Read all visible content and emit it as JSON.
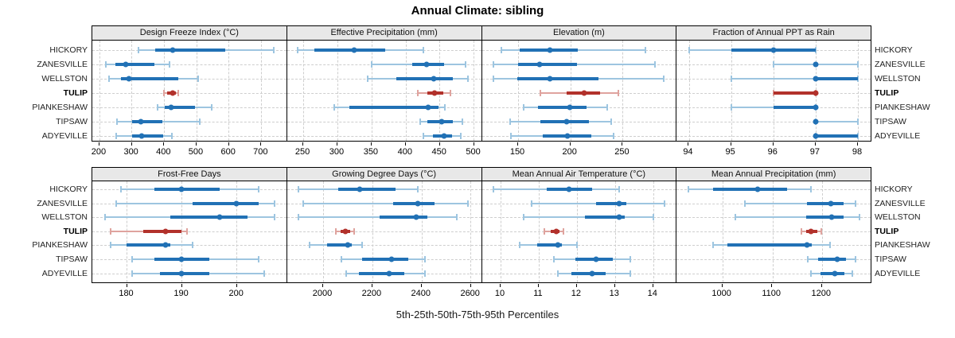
{
  "title": "Annual Climate: sibling",
  "caption": "5th-25th-50th-75th-95th Percentiles",
  "colors": {
    "blue": "#2171b5",
    "blue_light": "#9dc5e0",
    "red": "#b2312b",
    "red_light": "#dfa39e",
    "strip_bg": "#e8e8e8",
    "grid": "#cecece",
    "border": "#000000"
  },
  "chart_data": {
    "type": "scatter",
    "variant": "dot-and-whisker percentile plot (5th-25th-50th-75th-95th), lattice 2x4 panels",
    "title": "Annual Climate: sibling",
    "caption": "5th-25th-50th-75th-95th Percentiles",
    "legend_position": "none",
    "grid": "dashed",
    "categories": [
      "HICKORY",
      "ZANESVILLE",
      "WELLSTON",
      "TULIP",
      "PIANKESHAW",
      "TIPSAW",
      "ADYEVILLE"
    ],
    "highlight": "TULIP",
    "panels": [
      {
        "title": "Design Freeze Index (°C)",
        "ticks": [
          200,
          300,
          400,
          500,
          600,
          700
        ],
        "xlim": [
          178,
          779
        ],
        "values": [
          [
            320,
            374,
            426,
            590,
            740
          ],
          [
            221,
            250,
            281,
            370,
            418
          ],
          [
            229,
            266,
            291,
            444,
            506
          ],
          [
            400,
            410,
            426,
            437,
            445
          ],
          [
            380,
            402,
            421,
            495,
            548
          ],
          [
            254,
            301,
            328,
            394,
            510
          ],
          [
            253,
            301,
            332,
            398,
            424
          ]
        ]
      },
      {
        "title": "Effective Precipitation (mm)",
        "ticks": [
          250,
          300,
          350,
          400,
          450,
          500
        ],
        "xlim": [
          226,
          511
        ],
        "values": [
          [
            242,
            266,
            324,
            370,
            426
          ],
          [
            350,
            410,
            431,
            457,
            488
          ],
          [
            344,
            386,
            441,
            470,
            492
          ],
          [
            418,
            432,
            443,
            455,
            466
          ],
          [
            295,
            318,
            433,
            448,
            458
          ],
          [
            422,
            432,
            453,
            469,
            484
          ],
          [
            426,
            440,
            457,
            468,
            481
          ]
        ]
      },
      {
        "title": "Elevation (m)",
        "ticks": [
          150,
          200,
          250
        ],
        "xlim": [
          115,
          301
        ],
        "values": [
          [
            134,
            151,
            180,
            207,
            272
          ],
          [
            126,
            150,
            170,
            206,
            281
          ],
          [
            126,
            149,
            180,
            227,
            289
          ],
          [
            171,
            196,
            213,
            228,
            246
          ],
          [
            155,
            169,
            199,
            215,
            235
          ],
          [
            142,
            171,
            196,
            218,
            239
          ],
          [
            143,
            173,
            197,
            220,
            241
          ]
        ]
      },
      {
        "title": "Fraction of Annual PPT as Rain",
        "ticks": [
          94,
          95,
          96,
          97,
          98
        ],
        "xlim": [
          93.7,
          98.3
        ],
        "values": [
          [
            94,
            95,
            96,
            97,
            97
          ],
          [
            96,
            97,
            97,
            97,
            98
          ],
          [
            95,
            97,
            97,
            98,
            98
          ],
          [
            96,
            96,
            97,
            97,
            97
          ],
          [
            95,
            96,
            97,
            97,
            97
          ],
          [
            97,
            97,
            97,
            97,
            98
          ],
          [
            97,
            97,
            97,
            98,
            98
          ]
        ]
      },
      {
        "title": "Frost-Free Days",
        "ticks": [
          180,
          190,
          200
        ],
        "xlim": [
          173.7,
          209.1
        ],
        "values": [
          [
            179,
            185,
            190,
            197,
            204
          ],
          [
            178,
            192,
            200,
            204,
            207
          ],
          [
            176,
            188,
            197,
            202,
            207
          ],
          [
            177,
            183,
            187,
            190,
            191
          ],
          [
            177,
            180,
            187,
            188,
            192
          ],
          [
            181,
            185,
            190,
            195,
            204
          ],
          [
            181,
            186,
            190,
            195,
            205
          ]
        ]
      },
      {
        "title": "Growing Degree Days (°C)",
        "ticks": [
          2000,
          2200,
          2400,
          2600
        ],
        "xlim": [
          1853,
          2643
        ],
        "values": [
          [
            1900,
            2060,
            2150,
            2295,
            2385
          ],
          [
            1920,
            2285,
            2385,
            2455,
            2590
          ],
          [
            1900,
            2230,
            2380,
            2425,
            2545
          ],
          [
            2050,
            2070,
            2090,
            2110,
            2125
          ],
          [
            1945,
            2015,
            2100,
            2115,
            2160
          ],
          [
            2075,
            2160,
            2280,
            2345,
            2415
          ],
          [
            2095,
            2145,
            2270,
            2330,
            2415
          ]
        ]
      },
      {
        "title": "Mean Annual Air Temperature (°C)",
        "ticks": [
          10,
          11,
          12,
          13,
          14
        ],
        "xlim": [
          9.5,
          14.6
        ],
        "values": [
          [
            9.8,
            11.2,
            11.8,
            12.4,
            13.1
          ],
          [
            10.8,
            12.5,
            13.1,
            13.3,
            14.3
          ],
          [
            10.6,
            12.2,
            13.1,
            13.25,
            14.0
          ],
          [
            11.15,
            11.3,
            11.45,
            11.55,
            11.65
          ],
          [
            10.5,
            10.95,
            11.5,
            11.6,
            12.0
          ],
          [
            11.4,
            11.95,
            12.5,
            12.95,
            13.4
          ],
          [
            11.5,
            11.85,
            12.4,
            12.75,
            13.4
          ]
        ]
      },
      {
        "title": "Mean Annual Precipitation (mm)",
        "ticks": [
          1000,
          1100,
          1200
        ],
        "xlim": [
          907,
          1298
        ],
        "values": [
          [
            930,
            980,
            1070,
            1130,
            1178
          ],
          [
            1045,
            1170,
            1218,
            1243,
            1268
          ],
          [
            1025,
            1168,
            1220,
            1243,
            1275
          ],
          [
            1158,
            1168,
            1178,
            1190,
            1199
          ],
          [
            980,
            1010,
            1170,
            1180,
            1216
          ],
          [
            1172,
            1192,
            1230,
            1248,
            1267
          ],
          [
            1178,
            1197,
            1226,
            1245,
            1261
          ]
        ]
      }
    ]
  }
}
